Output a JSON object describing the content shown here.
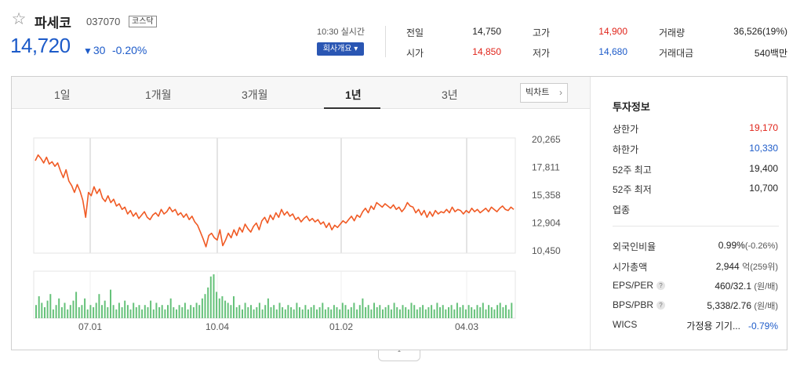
{
  "stock": {
    "name": "파세코",
    "code": "037070",
    "market": "코스닥",
    "price": "14,720",
    "change_arrow": "▼",
    "change": "30",
    "rate": "-0.20%",
    "time": "10:30 실시간",
    "company_button": "회사개요 ▾"
  },
  "quote": {
    "prev_label": "전일",
    "prev_value": "14,750",
    "open_label": "시가",
    "open_value": "14,850",
    "high_label": "고가",
    "high_value": "14,900",
    "low_label": "저가",
    "low_value": "14,680",
    "volume_label": "거래량",
    "volume_value": "36,526(19%)",
    "amount_label": "거래대금",
    "amount_value": "540백만"
  },
  "tabs": [
    "1일",
    "1개월",
    "3개월",
    "1년",
    "3년"
  ],
  "active_tab": "1년",
  "big_chart": "빅차트",
  "chart_data": {
    "type": "line",
    "y_ticks": [
      "20,265",
      "17,811",
      "15,358",
      "12,904",
      "10,450"
    ],
    "x_ticks": [
      "07.01",
      "10.04",
      "01.02",
      "04.03"
    ],
    "ylim": [
      10450,
      20265
    ],
    "series": [
      {
        "values": [
          18400,
          18900,
          18600,
          18200,
          18700,
          18100,
          18300,
          17900,
          18200,
          17500,
          16900,
          17600,
          16600,
          16200,
          15600,
          16300,
          15700,
          14900,
          13400,
          15600,
          15300,
          16100,
          15500,
          15900,
          15100,
          14800,
          15300,
          14700,
          15000,
          14400,
          14600,
          14100,
          14300,
          13700,
          14000,
          13500,
          13800,
          13300,
          13600,
          13900,
          13400,
          13200,
          13600,
          13800,
          13500,
          14100,
          13700,
          13900,
          14300,
          13900,
          14100,
          13600,
          13800,
          13400,
          13700,
          13200,
          13500,
          13000,
          12700,
          12100,
          11500,
          10800,
          11800,
          12000,
          11600,
          11400,
          12300,
          10900,
          11400,
          12000,
          11600,
          12300,
          11800,
          12500,
          12100,
          12800,
          12400,
          12100,
          12600,
          12900,
          12300,
          13100,
          13400,
          12900,
          13600,
          13200,
          13800,
          13400,
          14100,
          13600,
          13900,
          13500,
          13700,
          13200,
          13400,
          13000,
          13300,
          13500,
          13100,
          13300,
          13000,
          13200,
          12800,
          13000,
          12500,
          12900,
          12300,
          12700,
          12500,
          12800,
          13100,
          12900,
          13200,
          13500,
          13100,
          13600,
          13400,
          13900,
          14200,
          13800,
          14400,
          14100,
          14700,
          14500,
          14300,
          14600,
          14400,
          14200,
          14500,
          14100,
          14300,
          13900,
          14200,
          14700,
          14400,
          14300,
          13800,
          14100,
          13600,
          14000,
          13400,
          13900,
          13500,
          14000,
          13700,
          13900,
          13800,
          14100,
          13800,
          14300,
          13900,
          14100,
          14000,
          13700,
          14000,
          13800,
          14200,
          13900,
          14100,
          13800,
          14000,
          14200,
          13900,
          14300,
          14100,
          13900,
          14200,
          14400,
          14100,
          14000,
          14300,
          14100
        ]
      }
    ],
    "volume": [
      0.3,
      0.5,
      0.35,
      0.25,
      0.4,
      0.55,
      0.2,
      0.3,
      0.45,
      0.25,
      0.35,
      0.2,
      0.3,
      0.4,
      0.6,
      0.25,
      0.3,
      0.45,
      0.2,
      0.3,
      0.25,
      0.35,
      0.55,
      0.3,
      0.4,
      0.25,
      0.65,
      0.3,
      0.2,
      0.35,
      0.25,
      0.4,
      0.3,
      0.2,
      0.35,
      0.25,
      0.3,
      0.2,
      0.3,
      0.25,
      0.4,
      0.2,
      0.35,
      0.25,
      0.3,
      0.2,
      0.3,
      0.45,
      0.25,
      0.2,
      0.3,
      0.25,
      0.35,
      0.2,
      0.3,
      0.25,
      0.35,
      0.3,
      0.45,
      0.55,
      0.7,
      0.95,
      1.0,
      0.6,
      0.45,
      0.5,
      0.4,
      0.35,
      0.3,
      0.5,
      0.25,
      0.3,
      0.2,
      0.35,
      0.25,
      0.3,
      0.2,
      0.25,
      0.35,
      0.2,
      0.3,
      0.45,
      0.25,
      0.3,
      0.2,
      0.35,
      0.25,
      0.2,
      0.3,
      0.25,
      0.2,
      0.35,
      0.25,
      0.2,
      0.3,
      0.2,
      0.25,
      0.3,
      0.2,
      0.25,
      0.35,
      0.2,
      0.25,
      0.2,
      0.3,
      0.25,
      0.2,
      0.35,
      0.3,
      0.2,
      0.25,
      0.35,
      0.2,
      0.3,
      0.45,
      0.25,
      0.3,
      0.2,
      0.35,
      0.25,
      0.3,
      0.2,
      0.25,
      0.3,
      0.2,
      0.35,
      0.25,
      0.2,
      0.3,
      0.25,
      0.2,
      0.35,
      0.3,
      0.2,
      0.25,
      0.3,
      0.2,
      0.25,
      0.3,
      0.2,
      0.35,
      0.25,
      0.3,
      0.2,
      0.25,
      0.3,
      0.2,
      0.35,
      0.25,
      0.3,
      0.2,
      0.3,
      0.25,
      0.2,
      0.3,
      0.25,
      0.35,
      0.2,
      0.3,
      0.25,
      0.2,
      0.3,
      0.35,
      0.25,
      0.3,
      0.2,
      0.35
    ]
  },
  "invest_info": {
    "title": "투자정보",
    "upper_label": "상한가",
    "upper_value": "19,170",
    "lower_label": "하한가",
    "lower_value": "10,330",
    "high52_label": "52주 최고",
    "high52_value": "19,400",
    "low52_label": "52주 최저",
    "low52_value": "10,700",
    "industry_label": "업종",
    "foreign_label": "외국인비율",
    "foreign_value": "0.99%",
    "foreign_change": "(-0.26%)",
    "mcap_label": "시가총액",
    "mcap_value": "2,944",
    "mcap_unit": "억",
    "mcap_rank": "(259위)",
    "eps_label": "EPS/PER",
    "eps_value": "460/32.1",
    "eps_unit": "(원/배)",
    "bps_label": "BPS/PBR",
    "bps_value": "5,338/2.76",
    "bps_unit": "(원/배)",
    "wics_label": "WICS",
    "wics_value": "가정용 기기...",
    "wics_change": "-0.79%",
    "help_mark": "?"
  },
  "toggle": "ˆ",
  "colors": {
    "up": "#e0241a",
    "down": "#1d5bc9",
    "line": "#f05a24",
    "volume": "#66c27a"
  }
}
